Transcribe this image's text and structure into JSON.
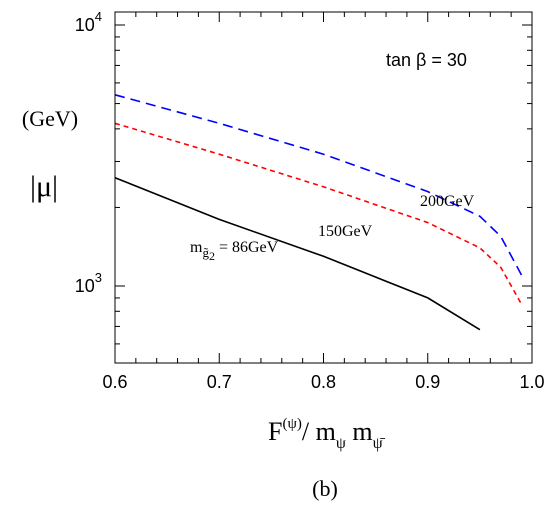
{
  "chart_data": {
    "type": "line",
    "xlabel": "F^(ψ)/ m_ψ m_ψ̄",
    "xlabel_parts": {
      "main": "F",
      "sup": "(ψ)",
      "slash": "/",
      "m1": "m",
      "sub1": "ψ",
      "m2": "m",
      "sub2": "ψ̄"
    },
    "ylabel_unit": "(GeV)",
    "ylabel_symbol": "|μ|",
    "panel_label": "(b)",
    "xlim": [
      0.6,
      1.0
    ],
    "ylim": [
      500,
      10000
    ],
    "y_scale": "log",
    "x_ticks": [
      "0.6",
      "0.7",
      "0.8",
      "0.9",
      "1.0"
    ],
    "y_ticks": [
      {
        "value": 10000,
        "base": "10",
        "exp": "4"
      },
      {
        "value": 1000,
        "base": "10",
        "exp": "3"
      }
    ],
    "annotation": "tan β =  30",
    "series": [
      {
        "name": "200GeV",
        "style": "dashed",
        "color": "#0000ff",
        "x": [
          0.6,
          0.7,
          0.8,
          0.9,
          0.95,
          0.97,
          0.99
        ],
        "y": [
          5400,
          4200,
          3200,
          2300,
          1850,
          1550,
          1100
        ]
      },
      {
        "name": "150GeV",
        "style": "dotted",
        "color": "#ff0000",
        "x": [
          0.6,
          0.7,
          0.8,
          0.9,
          0.95,
          0.97,
          0.99
        ],
        "y": [
          4200,
          3200,
          2400,
          1750,
          1400,
          1180,
          850
        ]
      },
      {
        "name": "m g̃2 = 86GeV",
        "label_parts": {
          "m": "m",
          "sub": "g̃",
          "subsub": "2",
          "rest": " = 86GeV"
        },
        "style": "solid",
        "color": "#000000",
        "x": [
          0.6,
          0.7,
          0.8,
          0.9,
          0.95
        ],
        "y": [
          2600,
          1800,
          1300,
          900,
          680
        ]
      }
    ]
  }
}
